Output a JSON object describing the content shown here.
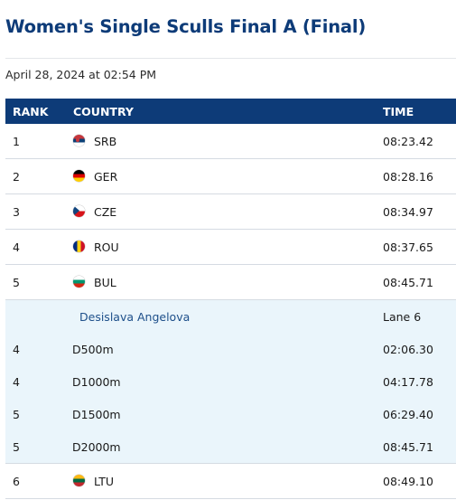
{
  "page": {
    "title": "Women's Single Sculls Final A (Final)",
    "datetime": "April 28, 2024 at 02:54 PM"
  },
  "table": {
    "headers": {
      "rank": "RANK",
      "country": "COUNTRY",
      "time": "TIME"
    },
    "rows": [
      {
        "rank": "1",
        "country": "SRB",
        "flag": "srb",
        "time": "08:23.42"
      },
      {
        "rank": "2",
        "country": "GER",
        "flag": "ger",
        "time": "08:28.16"
      },
      {
        "rank": "3",
        "country": "CZE",
        "flag": "cze",
        "time": "08:34.97"
      },
      {
        "rank": "4",
        "country": "ROU",
        "flag": "rou",
        "time": "08:37.65"
      },
      {
        "rank": "5",
        "country": "BUL",
        "flag": "bul",
        "time": "08:45.71"
      },
      {
        "rank": "6",
        "country": "LTU",
        "flag": "ltu",
        "time": "08:49.10"
      }
    ],
    "expanded": {
      "athlete": "Desislava Angelova",
      "lane": "Lane 6",
      "splits": [
        {
          "rank": "4",
          "distance": "D500m",
          "time": "02:06.30"
        },
        {
          "rank": "4",
          "distance": "D1000m",
          "time": "04:17.78"
        },
        {
          "rank": "5",
          "distance": "D1500m",
          "time": "06:29.40"
        },
        {
          "rank": "5",
          "distance": "D2000m",
          "time": "08:45.71"
        }
      ]
    }
  },
  "colors": {
    "header_bg": "#0d3b78",
    "title": "#0d3b78",
    "expanded_bg": "#eaf5fb",
    "athlete_name": "#1d4f8a"
  }
}
